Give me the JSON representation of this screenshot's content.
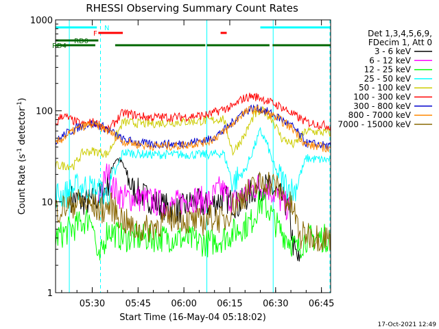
{
  "chart_data": {
    "type": "line",
    "title": "RHESSI Observing Summary Count Rates",
    "xlabel": "Start Time (16-May-04 05:18:02)",
    "ylabel_parts": [
      "Count Rate (s",
      "-1",
      " detector",
      "-1",
      ")"
    ],
    "y_scale": "log",
    "ylim": [
      1,
      1000
    ],
    "xlim_minutes": [
      0,
      90
    ],
    "x_ticks": [
      {
        "label": "05:30",
        "t": 12
      },
      {
        "label": "05:45",
        "t": 27
      },
      {
        "label": "06:00",
        "t": 42
      },
      {
        "label": "06:15",
        "t": 57
      },
      {
        "label": "06:30",
        "t": 72
      },
      {
        "label": "06:45",
        "t": 87
      }
    ],
    "y_ticks": [
      {
        "label": "1",
        "v": 1
      },
      {
        "label": "10",
        "v": 10
      },
      {
        "label": "100",
        "v": 100
      },
      {
        "label": "1000",
        "v": 1000
      }
    ],
    "legend_header": [
      "Det 1,3,4,5,6,9,",
      "FDecim 1, Att 0"
    ],
    "legend_position": "right",
    "series": [
      {
        "name": "3 - 6 keV",
        "color": "#000000",
        "points": [
          [
            5,
            11
          ],
          [
            8,
            10
          ],
          [
            11,
            10
          ],
          [
            14,
            11
          ],
          [
            17,
            15
          ],
          [
            19,
            27
          ],
          [
            20,
            30
          ],
          [
            22,
            26
          ],
          [
            25,
            14
          ],
          [
            30,
            11
          ],
          [
            35,
            9
          ],
          [
            40,
            8
          ],
          [
            45,
            10
          ],
          [
            50,
            9
          ],
          [
            55,
            11
          ],
          [
            60,
            9
          ],
          [
            64,
            13
          ],
          [
            68,
            15
          ],
          [
            72,
            13
          ],
          [
            76,
            9
          ],
          [
            78,
            3
          ],
          [
            80,
            2
          ]
        ]
      },
      {
        "name": "6 - 12 keV",
        "color": "#ff00ff",
        "points": [
          [
            14,
            11
          ],
          [
            17,
            21
          ],
          [
            19,
            14
          ],
          [
            22,
            11
          ],
          [
            27,
            11
          ],
          [
            32,
            10
          ],
          [
            38,
            9
          ],
          [
            44,
            11
          ],
          [
            50,
            10
          ],
          [
            54,
            14
          ],
          [
            58,
            10
          ],
          [
            62,
            12
          ],
          [
            66,
            15
          ],
          [
            70,
            14
          ],
          [
            74,
            10
          ],
          [
            77,
            8
          ]
        ]
      },
      {
        "name": "12 - 25 keV",
        "color": "#00ff00",
        "points": [
          [
            0,
            4
          ],
          [
            5,
            5
          ],
          [
            9,
            6
          ],
          [
            12,
            7
          ],
          [
            14,
            2
          ],
          [
            17,
            5
          ],
          [
            22,
            4
          ],
          [
            30,
            4
          ],
          [
            40,
            4
          ],
          [
            50,
            3.5
          ],
          [
            55,
            4
          ],
          [
            60,
            5
          ],
          [
            64,
            6
          ],
          [
            67,
            10
          ],
          [
            70,
            8
          ],
          [
            73,
            5
          ],
          [
            76,
            4
          ],
          [
            79,
            3
          ],
          [
            82,
            4
          ],
          [
            87,
            4
          ],
          [
            90,
            4
          ]
        ]
      },
      {
        "name": "25 - 50 keV",
        "color": "#00ffff",
        "points": [
          [
            0,
            12
          ],
          [
            3,
            12
          ],
          [
            6,
            14
          ],
          [
            9,
            15
          ],
          [
            12,
            14
          ],
          [
            14,
            13
          ],
          [
            17,
            12
          ],
          [
            22,
            35
          ],
          [
            30,
            33
          ],
          [
            40,
            33
          ],
          [
            50,
            33
          ],
          [
            55,
            34
          ],
          [
            58,
            16
          ],
          [
            62,
            22
          ],
          [
            65,
            40
          ],
          [
            67,
            60
          ],
          [
            69,
            45
          ],
          [
            72,
            22
          ],
          [
            75,
            16
          ],
          [
            78,
            13
          ],
          [
            82,
            30
          ],
          [
            87,
            29
          ],
          [
            90,
            29
          ]
        ]
      },
      {
        "name": "50 - 100 keV",
        "color": "#cccc00",
        "points": [
          [
            0,
            25
          ],
          [
            3,
            25
          ],
          [
            6,
            25
          ],
          [
            9,
            35
          ],
          [
            12,
            36
          ],
          [
            15,
            35
          ],
          [
            17,
            33
          ],
          [
            22,
            75
          ],
          [
            30,
            72
          ],
          [
            40,
            75
          ],
          [
            50,
            78
          ],
          [
            55,
            82
          ],
          [
            58,
            35
          ],
          [
            62,
            55
          ],
          [
            65,
            90
          ],
          [
            68,
            100
          ],
          [
            71,
            80
          ],
          [
            74,
            50
          ],
          [
            78,
            42
          ],
          [
            82,
            60
          ],
          [
            87,
            58
          ],
          [
            90,
            57
          ]
        ]
      },
      {
        "name": "100 - 300 keV",
        "color": "#ff0000",
        "points": [
          [
            0,
            70
          ],
          [
            2,
            90
          ],
          [
            5,
            80
          ],
          [
            9,
            70
          ],
          [
            12,
            75
          ],
          [
            15,
            70
          ],
          [
            17,
            60
          ],
          [
            22,
            95
          ],
          [
            30,
            85
          ],
          [
            40,
            85
          ],
          [
            50,
            90
          ],
          [
            55,
            105
          ],
          [
            58,
            110
          ],
          [
            61,
            135
          ],
          [
            64,
            145
          ],
          [
            67,
            140
          ],
          [
            70,
            125
          ],
          [
            74,
            110
          ],
          [
            78,
            90
          ],
          [
            82,
            75
          ],
          [
            87,
            70
          ],
          [
            90,
            68
          ]
        ]
      },
      {
        "name": "300 - 800 keV",
        "color": "#0000cc",
        "points": [
          [
            0,
            45
          ],
          [
            3,
            55
          ],
          [
            7,
            65
          ],
          [
            11,
            73
          ],
          [
            14,
            70
          ],
          [
            17,
            63
          ],
          [
            22,
            48
          ],
          [
            30,
            43
          ],
          [
            40,
            43
          ],
          [
            50,
            48
          ],
          [
            55,
            60
          ],
          [
            58,
            75
          ],
          [
            61,
            95
          ],
          [
            64,
            105
          ],
          [
            67,
            105
          ],
          [
            70,
            95
          ],
          [
            74,
            80
          ],
          [
            78,
            65
          ],
          [
            82,
            44
          ],
          [
            87,
            42
          ],
          [
            90,
            40
          ]
        ]
      },
      {
        "name": "800 - 7000 keV",
        "color": "#ff8800",
        "points": [
          [
            0,
            43
          ],
          [
            3,
            52
          ],
          [
            7,
            63
          ],
          [
            11,
            71
          ],
          [
            14,
            68
          ],
          [
            17,
            61
          ],
          [
            22,
            46
          ],
          [
            30,
            41
          ],
          [
            40,
            41
          ],
          [
            50,
            46
          ],
          [
            55,
            58
          ],
          [
            58,
            72
          ],
          [
            61,
            92
          ],
          [
            64,
            103
          ],
          [
            67,
            102
          ],
          [
            70,
            92
          ],
          [
            74,
            77
          ],
          [
            78,
            62
          ],
          [
            82,
            42
          ],
          [
            87,
            40
          ],
          [
            90,
            38
          ]
        ]
      },
      {
        "name": "7000 - 15000 keV",
        "color": "#886600",
        "points": [
          [
            0,
            8
          ],
          [
            4,
            9
          ],
          [
            8,
            10
          ],
          [
            12,
            9
          ],
          [
            15,
            8
          ],
          [
            18,
            9
          ],
          [
            21,
            7
          ],
          [
            25,
            5
          ],
          [
            30,
            5
          ],
          [
            35,
            6
          ],
          [
            40,
            7
          ],
          [
            44,
            6
          ],
          [
            48,
            6
          ],
          [
            52,
            7
          ],
          [
            55,
            6
          ],
          [
            58,
            9
          ],
          [
            62,
            12
          ],
          [
            66,
            15
          ],
          [
            69,
            17
          ],
          [
            72,
            15
          ],
          [
            75,
            11
          ],
          [
            78,
            8
          ],
          [
            80,
            4
          ],
          [
            82,
            4.5
          ],
          [
            87,
            4
          ],
          [
            90,
            4
          ]
        ]
      }
    ],
    "state_bars": [
      {
        "label": "N",
        "color": "#00ffff",
        "segments": [
          [
            0,
            13.5
          ],
          [
            67,
            90
          ]
        ]
      },
      {
        "label": "F",
        "color": "#ff0000",
        "segments": [
          [
            14,
            22
          ],
          [
            54,
            56
          ]
        ]
      },
      {
        "label": "RD0",
        "color": "#006600",
        "segments": [
          [
            0,
            14
          ]
        ]
      },
      {
        "label": "RD4",
        "color": "#006600",
        "segments": [
          [
            0,
            13
          ],
          [
            19.5,
            49
          ],
          [
            49.5,
            70
          ],
          [
            71,
            90
          ]
        ]
      }
    ],
    "vlines_minutes": [
      4.5,
      14.7,
      49.5,
      71.2,
      90.5
    ],
    "timestamp": "17-Oct-2021 12:49"
  }
}
